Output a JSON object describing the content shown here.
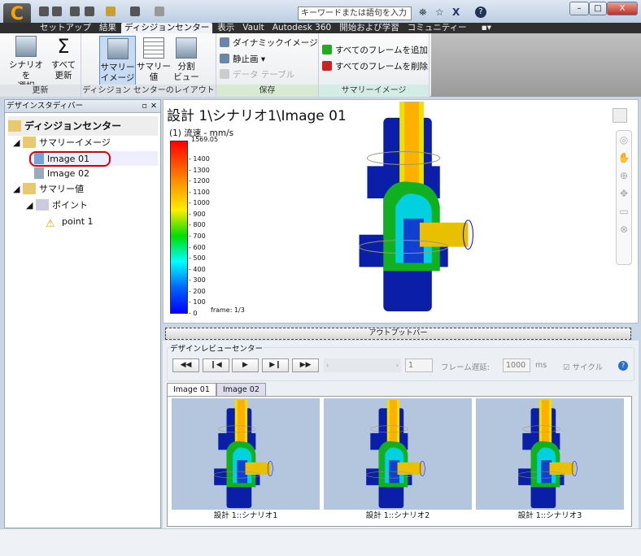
{
  "app": {
    "logo": "C",
    "search_placeholder": "キーワードまたは語句を入力",
    "window_buttons": [
      "–",
      "□",
      "X"
    ]
  },
  "tabs": [
    "セットアップ",
    "結果",
    "ディシジョンセンター",
    "表示",
    "Vault",
    "Autodesk 360",
    "開始および学習",
    "コミュニティー"
  ],
  "active_tab": 2,
  "ribbon": {
    "update": {
      "label": "更新",
      "select_scenario": [
        "シナリオを",
        "選択"
      ],
      "update_all": [
        "すべて",
        "更新"
      ]
    },
    "layout": {
      "label": "ディシジョン センターのレイアウト",
      "summary_image": [
        "サマリー",
        "イメージ"
      ],
      "summary_value": [
        "サマリー",
        "値"
      ],
      "split_view": [
        "分割",
        "ビュー"
      ]
    },
    "save": {
      "label": "保存",
      "dynamic_image": "ダイナミックイメージ",
      "still_image": "静止画",
      "data_table": "データ テーブル"
    },
    "summary_image": {
      "label": "サマリーイメージ",
      "add_all": "すべてのフレームを追加",
      "delete_all": "すべてのフレームを削除"
    }
  },
  "left_panel": {
    "title": "デザインスタディバー",
    "root": "ディシジョンセンター",
    "items": [
      {
        "label": "サマリーイメージ"
      },
      {
        "label": "Image 01",
        "selected": true
      },
      {
        "label": "Image 02"
      },
      {
        "label": "サマリー値"
      },
      {
        "label": "ポイント"
      },
      {
        "label": "point 1"
      }
    ]
  },
  "view": {
    "title": "設計 1\\シナリオ1\\Image 01",
    "legend_title": "(1) 流速 - mm/s",
    "legend_max": "1569.05",
    "ticks": [
      "1400",
      "1300",
      "1200",
      "1100",
      "1000",
      "900",
      "800",
      "700",
      "600",
      "500",
      "400",
      "300",
      "200",
      "100",
      "0"
    ],
    "frame": "frame: 1/3"
  },
  "output_bar": "アウトプットバー",
  "review": {
    "title": "デザインレビューセンター",
    "frame_value": "1",
    "frame_delay_label": "フレーム遅延:",
    "frame_delay": "1000",
    "unit": "ms",
    "cycle": "サイクル",
    "cycle_checked": true,
    "tabs": [
      "Image 01",
      "Image 02"
    ],
    "captions": [
      "設計 1::シナリオ1",
      "設計 1::シナリオ2",
      "設計 1::シナリオ3"
    ]
  },
  "colors": {
    "accent": "#e00000",
    "legend": [
      "#ff0000",
      "#ff8800",
      "#ffee00",
      "#00dd00",
      "#00ffff",
      "#0066ff",
      "#0000ff"
    ]
  }
}
